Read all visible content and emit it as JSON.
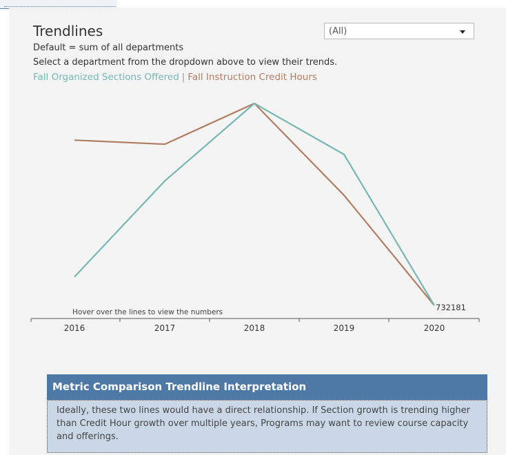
{
  "header": {
    "title": "Trendlines",
    "subtitle_1": "Default = sum of all departments",
    "subtitle_2": "Select a department from the dropdown above to view their trends."
  },
  "legend": {
    "sections_label": "Fall Organized Sections Offered",
    "separator": "|",
    "credit_label": "Fall Instruction Credit Hours"
  },
  "filter": {
    "selected": "(All)"
  },
  "hover_hint": "Hover over the lines to view the numbers",
  "end_labels": {
    "overlap_text": "732181"
  },
  "interpretation": {
    "title": "Metric Comparison Trendline Interpretation",
    "body": "Ideally, these two lines would have a direct relationship. If Section growth is trending higher than Credit Hour growth over multiple years, Programs may want to review course capacity and offerings."
  },
  "colors": {
    "sections": "#76b7b2",
    "credit": "#b07d62",
    "header_bg": "#4e79a7",
    "body_bg": "#cad7e7"
  },
  "chart_data": {
    "type": "line",
    "x": [
      "2016",
      "2017",
      "2018",
      "2019",
      "2020"
    ],
    "series": [
      {
        "name": "Fall Organized Sections Offered",
        "values": [
          0.15,
          0.62,
          1.0,
          0.75,
          0.01
        ]
      },
      {
        "name": "Fall Instruction Credit Hours",
        "values": [
          0.82,
          0.8,
          1.0,
          0.55,
          0.01
        ]
      }
    ],
    "ylim": [
      0,
      1
    ],
    "grid": false,
    "legend": "top-left"
  }
}
